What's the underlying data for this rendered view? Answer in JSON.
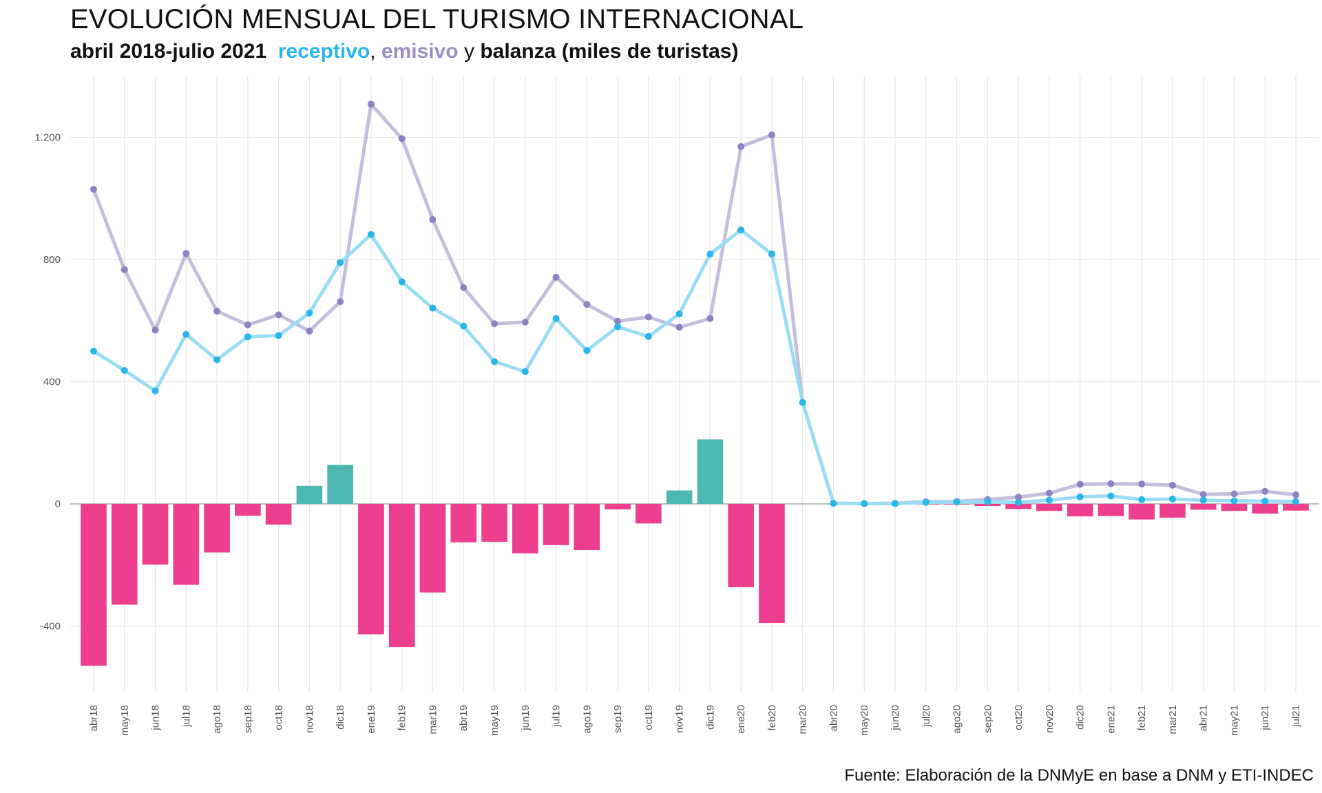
{
  "title": "EVOLUCIÓN MENSUAL DEL TURISMO INTERNACIONAL",
  "subtitle": {
    "period": "abril 2018-julio 2021",
    "receptivo": "receptivo",
    "comma": ",",
    "emisivo": "emisivo",
    "y": "y",
    "balanza": "balanza (miles de turistas)"
  },
  "source": "Fuente: Elaboración de la DNMyE en base a DNM y ETI-INDEC",
  "colors": {
    "receptivo_line": "#9adcf3",
    "receptivo_point": "#29b6e8",
    "emisivo_line": "#c4bedd",
    "emisivo_point": "#8f82c2",
    "balanza_positive": "#4db8b0",
    "balanza_negative": "#ee3e8e",
    "grid": "#e6e6e6"
  },
  "chart_data": {
    "type": "bar+line",
    "ylim": [
      -600,
      1400
    ],
    "yticks": [
      -400,
      0,
      400,
      800,
      1200
    ],
    "ytick_labels": [
      "-400",
      "0",
      "400",
      "800",
      "1.200"
    ],
    "grid": true,
    "categories": [
      "abr18",
      "may18",
      "jun18",
      "jul18",
      "ago18",
      "sep18",
      "oct18",
      "nov18",
      "dic18",
      "ene19",
      "feb19",
      "mar19",
      "abr19",
      "may19",
      "jun19",
      "jul19",
      "ago19",
      "sep19",
      "oct19",
      "nov19",
      "dic19",
      "ene20",
      "feb20",
      "mar20",
      "abr20",
      "may20",
      "jun20",
      "jul20",
      "ago20",
      "sep20",
      "oct20",
      "nov20",
      "dic20",
      "ene21",
      "feb21",
      "mar21",
      "abr21",
      "may21",
      "jun21",
      "jul21"
    ],
    "series": [
      {
        "name": "receptivo",
        "kind": "line",
        "values": [
          500,
          437,
          370,
          555,
          472,
          547,
          551,
          625,
          790,
          882,
          727,
          641,
          582,
          466,
          433,
          607,
          502,
          580,
          548,
          622,
          818,
          897,
          818,
          332,
          2,
          1,
          1,
          5,
          6,
          7,
          5,
          12,
          23,
          26,
          14,
          16,
          12,
          10,
          9,
          8
        ]
      },
      {
        "name": "emisivo",
        "kind": "line",
        "values": [
          1030,
          767,
          569,
          820,
          631,
          586,
          619,
          566,
          662,
          1309,
          1196,
          931,
          708,
          590,
          595,
          742,
          653,
          598,
          612,
          578,
          607,
          1170,
          1208,
          332,
          2,
          1,
          2,
          7,
          8,
          14,
          22,
          35,
          64,
          66,
          65,
          61,
          31,
          33,
          41,
          30
        ]
      },
      {
        "name": "balanza",
        "kind": "bar",
        "values": [
          -530,
          -330,
          -199,
          -265,
          -159,
          -39,
          -68,
          59,
          128,
          -427,
          -469,
          -290,
          -126,
          -124,
          -162,
          -135,
          -151,
          -18,
          -64,
          44,
          211,
          -273,
          -390,
          0,
          0,
          0,
          -1,
          -2,
          -2,
          -7,
          -17,
          -23,
          -41,
          -40,
          -51,
          -45,
          -19,
          -23,
          -32,
          -22
        ]
      }
    ]
  }
}
